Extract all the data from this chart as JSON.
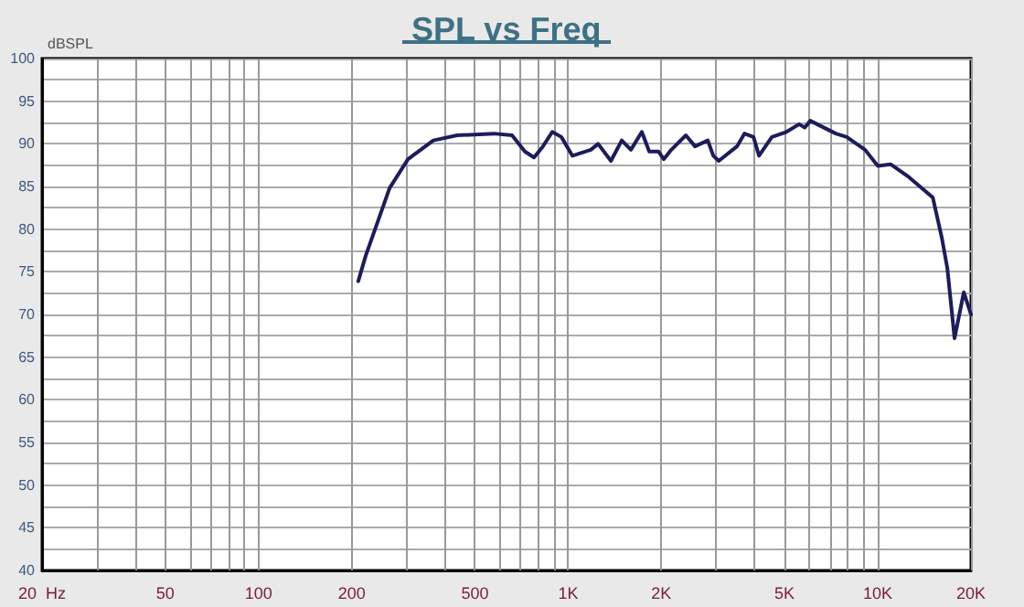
{
  "chart_data": {
    "type": "line",
    "title": "SPL vs Freq",
    "ylabel": "dBSPL",
    "log": "x",
    "grid": true,
    "marker": "none",
    "line_style": "solid",
    "xlim": [
      20,
      20000
    ],
    "ylim": [
      40,
      100
    ],
    "xticks": [
      {
        "value": 20,
        "label": "20  Hz"
      },
      {
        "value": 30,
        "label": null
      },
      {
        "value": 40,
        "label": null
      },
      50,
      {
        "value": 60,
        "label": null
      },
      {
        "value": 70,
        "label": null
      },
      {
        "value": 80,
        "label": null
      },
      {
        "value": 90,
        "label": null
      },
      100,
      200,
      {
        "value": 300,
        "label": null
      },
      {
        "value": 400,
        "label": null
      },
      500,
      {
        "value": 600,
        "label": null
      },
      {
        "value": 700,
        "label": null
      },
      {
        "value": 800,
        "label": null
      },
      {
        "value": 900,
        "label": null
      },
      {
        "value": 1000,
        "label": "1K"
      },
      {
        "value": 2000,
        "label": "2K"
      },
      {
        "value": 3000,
        "label": null
      },
      {
        "value": 4000,
        "label": null
      },
      {
        "value": 5000,
        "label": "5K"
      },
      {
        "value": 6000,
        "label": null
      },
      {
        "value": 7000,
        "label": null
      },
      {
        "value": 8000,
        "label": null
      },
      {
        "value": 9000,
        "label": null
      },
      {
        "value": 10000,
        "label": "10K"
      },
      {
        "value": 20000,
        "label": "20K"
      }
    ],
    "yticks": [
      40,
      {
        "value": 42.5,
        "label": null
      },
      45,
      {
        "value": 47.5,
        "label": null
      },
      50,
      {
        "value": 52.5,
        "label": null
      },
      55,
      {
        "value": 57.5,
        "label": null
      },
      60,
      {
        "value": 62.5,
        "label": null
      },
      65,
      {
        "value": 67.5,
        "label": null
      },
      70,
      {
        "value": 72.5,
        "label": null
      },
      75,
      {
        "value": 77.5,
        "label": null
      },
      80,
      {
        "value": 82.5,
        "label": null
      },
      85,
      {
        "value": 87.5,
        "label": null
      },
      90,
      {
        "value": 92.5,
        "label": null
      },
      95,
      {
        "value": 97.5,
        "label": null
      },
      100
    ],
    "x": [
      210,
      222,
      244,
      265,
      304,
      367,
      438,
      576,
      659,
      725,
      776,
      829,
      889,
      951,
      1033,
      1184,
      1250,
      1375,
      1490,
      1595,
      1730,
      1828,
      1958,
      2036,
      2154,
      2400,
      2570,
      2825,
      2944,
      3065,
      3510,
      3710,
      3970,
      4135,
      4550,
      5070,
      5575,
      5810,
      6055,
      7320,
      7940,
      9100,
      10000,
      11000,
      12600,
      15060,
      16100,
      16780,
      17700,
      18960,
      20000
    ],
    "series": [
      {
        "color": "#1c1c5c",
        "values": [
          73.9,
          76.9,
          81.1,
          84.8,
          88.2,
          90.4,
          91.0,
          91.2,
          91.0,
          89.1,
          88.4,
          89.7,
          91.4,
          90.8,
          88.6,
          89.3,
          90.0,
          88.0,
          90.4,
          89.3,
          91.4,
          89.1,
          89.1,
          88.2,
          89.3,
          91.0,
          89.7,
          90.4,
          88.6,
          88.0,
          89.7,
          91.2,
          90.8,
          88.6,
          90.8,
          91.4,
          92.3,
          91.9,
          92.7,
          91.2,
          90.8,
          89.3,
          87.4,
          87.6,
          86.1,
          83.7,
          79.0,
          75.4,
          67.2,
          72.6,
          70.0
        ]
      }
    ]
  }
}
